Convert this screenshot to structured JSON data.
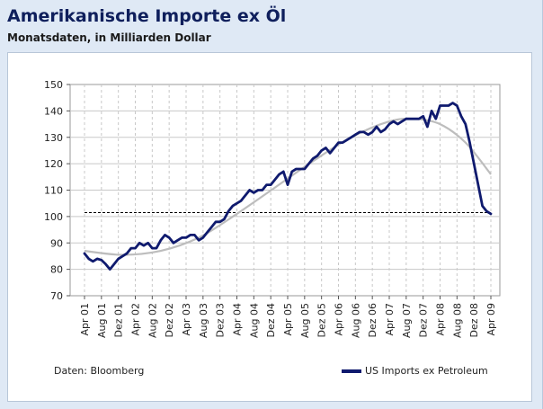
{
  "colors": {
    "frame_bg": "#dfe9f5",
    "series_line": "#0f1a6e",
    "trend_line": "#bdbdbd",
    "reference_line": "#000000",
    "grid": "#c8c8c8"
  },
  "chart_data": {
    "type": "line",
    "title": "Amerikanische Importe ex Öl",
    "subtitle": "Monatsdaten, in Milliarden Dollar",
    "source": "Daten: Bloomberg",
    "xlabel": "",
    "ylabel": "",
    "ylim": [
      70,
      150
    ],
    "yticks": [
      70,
      80,
      90,
      100,
      110,
      120,
      130,
      140,
      150
    ],
    "x_start": "2001-04",
    "x_end": "2009-04",
    "xtick_labels": [
      "Apr 01",
      "Aug 01",
      "Dez 01",
      "Apr 02",
      "Aug 02",
      "Dez 02",
      "Apr 03",
      "Aug 03",
      "Dez 03",
      "Apr 04",
      "Aug 04",
      "Dez 04",
      "Apr 05",
      "Aug 05",
      "Dez 05",
      "Apr 06",
      "Aug 06",
      "Dez 06",
      "Apr 07",
      "Aug 07",
      "Dez 07",
      "Apr 08",
      "Aug 08",
      "Dez 08",
      "Apr 09"
    ],
    "grid": true,
    "legend_position": "bottom-right",
    "series": [
      {
        "name": "US Imports ex Petroleum",
        "x": [
          "2001-04",
          "2001-05",
          "2001-06",
          "2001-07",
          "2001-08",
          "2001-09",
          "2001-10",
          "2001-11",
          "2001-12",
          "2002-01",
          "2002-02",
          "2002-03",
          "2002-04",
          "2002-05",
          "2002-06",
          "2002-07",
          "2002-08",
          "2002-09",
          "2002-10",
          "2002-11",
          "2002-12",
          "2003-01",
          "2003-02",
          "2003-03",
          "2003-04",
          "2003-05",
          "2003-06",
          "2003-07",
          "2003-08",
          "2003-09",
          "2003-10",
          "2003-11",
          "2003-12",
          "2004-01",
          "2004-02",
          "2004-03",
          "2004-04",
          "2004-05",
          "2004-06",
          "2004-07",
          "2004-08",
          "2004-09",
          "2004-10",
          "2004-11",
          "2004-12",
          "2005-01",
          "2005-02",
          "2005-03",
          "2005-04",
          "2005-05",
          "2005-06",
          "2005-07",
          "2005-08",
          "2005-09",
          "2005-10",
          "2005-11",
          "2005-12",
          "2006-01",
          "2006-02",
          "2006-03",
          "2006-04",
          "2006-05",
          "2006-06",
          "2006-07",
          "2006-08",
          "2006-09",
          "2006-10",
          "2006-11",
          "2006-12",
          "2007-01",
          "2007-02",
          "2007-03",
          "2007-04",
          "2007-05",
          "2007-06",
          "2007-07",
          "2007-08",
          "2007-09",
          "2007-10",
          "2007-11",
          "2007-12",
          "2008-01",
          "2008-02",
          "2008-03",
          "2008-04",
          "2008-05",
          "2008-06",
          "2008-07",
          "2008-08",
          "2008-09",
          "2008-10",
          "2008-11",
          "2008-12",
          "2009-01",
          "2009-02",
          "2009-03",
          "2009-04"
        ],
        "values": [
          86,
          84,
          83,
          84,
          83.5,
          82,
          80,
          82,
          84,
          85,
          86,
          88,
          88,
          90,
          89,
          90,
          88,
          88,
          91,
          93,
          92,
          90,
          91,
          92,
          92,
          93,
          93,
          91,
          92,
          94,
          96,
          98,
          98,
          99,
          102,
          104,
          105,
          106,
          108,
          110,
          109,
          110,
          110,
          112,
          112,
          114,
          116,
          117,
          112,
          117,
          118,
          118,
          118,
          120,
          122,
          123,
          125,
          126,
          124,
          126,
          128,
          128,
          129,
          130,
          131,
          132,
          132,
          131,
          132,
          134,
          132,
          133,
          135,
          136,
          135,
          136,
          137,
          137,
          137,
          137,
          138,
          134,
          140,
          137,
          142,
          142,
          142,
          143,
          142,
          138,
          135,
          128,
          120,
          112,
          104,
          102,
          101
        ]
      },
      {
        "name": "",
        "x": [
          "2001-04",
          "2002-01",
          "2002-10",
          "2003-07",
          "2004-04",
          "2005-01",
          "2005-10",
          "2006-07",
          "2007-04",
          "2007-10",
          "2008-04",
          "2008-10",
          "2009-04"
        ],
        "values": [
          87,
          85.5,
          87,
          92,
          101,
          111,
          121,
          130,
          136,
          137,
          135,
          128,
          116
        ]
      },
      {
        "name": "",
        "x": [
          "2001-04",
          "2009-04"
        ],
        "values": [
          101.5,
          101.5
        ]
      }
    ]
  }
}
